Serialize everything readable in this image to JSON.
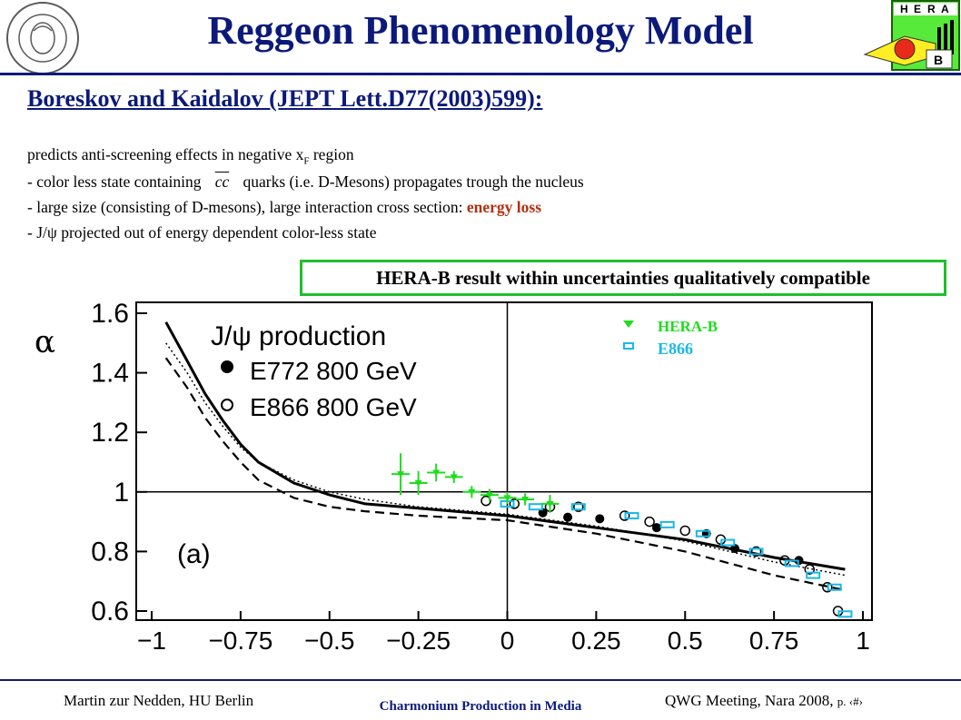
{
  "slide": {
    "title": "Reggeon Phenomenology Model",
    "subtitle": "Boreskov and Kaidalov (JEPT Lett.D77(2003)599):",
    "line1_prefix": "predicts anti-screening effects in negative x",
    "line1_sub": "F",
    "line1_suffix": " region",
    "line2_prefix": "- color less state containing",
    "line2_cc": "cc",
    "line2_suffix": "quarks (i.e. D-Mesons) propagates trough the nucleus",
    "line3_prefix": "- large size (consisting of D-mesons), large interaction cross section: ",
    "line3_highlight": "energy loss",
    "line4": "- J/ψ projected out of energy dependent color-less state",
    "callout": "HERA-B result within uncertainties qualitatively compatible"
  },
  "logos": {
    "university_seal_text": "HUMBOLDT-UNIVERSITÄT ZU BERLIN",
    "herab_letters": [
      "H",
      "E",
      "R",
      "A",
      "B"
    ]
  },
  "footer": {
    "left": "Martin zur Nedden, HU Berlin",
    "center": "Charmonium Production in Media",
    "right": "QWG Meeting, Nara 2008,",
    "page": "p. ‹#›"
  },
  "colors": {
    "title": "#0b1a7a",
    "highlight": "#b33010",
    "callout_border": "#1fbf2a",
    "herab_series": "#1fdc1f",
    "e866_overlay": "#19b8e8"
  },
  "chart_data": {
    "type": "scatter",
    "xlim": [
      -1,
      1
    ],
    "ylim": [
      0.55,
      1.62
    ],
    "xticks": [
      "−1",
      "−0.75",
      "−0.5",
      "−0.25",
      "0",
      "0.25",
      "0.5",
      "0.75",
      "1"
    ],
    "yticks": [
      "0.6",
      "0.8",
      "1",
      "1.2",
      "1.4",
      "1.6"
    ],
    "ylabel": "α",
    "panel_label": "(a)",
    "legend_title": "J/ψ production",
    "legend": [
      {
        "name": "E772  800 GeV",
        "marker": "filled-circle"
      },
      {
        "name": "E866  800 GeV",
        "marker": "open-circle"
      }
    ],
    "overlay_legend": [
      {
        "name": "HERA-B",
        "marker": "down-triangle",
        "color": "#1fdc1f"
      },
      {
        "name": "E866",
        "marker": "open-rect",
        "color": "#19b8e8"
      }
    ],
    "reference_line": {
      "y": 1,
      "x": 0
    },
    "curves": [
      {
        "style": "solid",
        "x": [
          -0.96,
          -0.9,
          -0.85,
          -0.8,
          -0.75,
          -0.7,
          -0.6,
          -0.5,
          -0.4,
          -0.25,
          0,
          0.25,
          0.5,
          0.75,
          0.95
        ],
        "y": [
          1.57,
          1.44,
          1.33,
          1.24,
          1.16,
          1.1,
          1.03,
          0.99,
          0.96,
          0.945,
          0.92,
          0.88,
          0.84,
          0.78,
          0.74
        ]
      },
      {
        "style": "dotted",
        "x": [
          -0.96,
          -0.9,
          -0.85,
          -0.8,
          -0.75,
          -0.7,
          -0.6,
          -0.5,
          -0.4,
          -0.25,
          0,
          0.25,
          0.5,
          0.75,
          0.95
        ],
        "y": [
          1.5,
          1.4,
          1.3,
          1.22,
          1.15,
          1.1,
          1.04,
          1.0,
          0.975,
          0.95,
          0.925,
          0.885,
          0.835,
          0.765,
          0.72
        ]
      },
      {
        "style": "dashed",
        "x": [
          -0.96,
          -0.9,
          -0.85,
          -0.8,
          -0.75,
          -0.7,
          -0.6,
          -0.5,
          -0.4,
          -0.25,
          0,
          0.25,
          0.5,
          0.75,
          0.95
        ],
        "y": [
          1.45,
          1.35,
          1.25,
          1.17,
          1.1,
          1.04,
          0.98,
          0.95,
          0.935,
          0.92,
          0.905,
          0.86,
          0.8,
          0.72,
          0.67
        ]
      }
    ],
    "e772": [
      {
        "x": 0.1,
        "y": 0.93
      },
      {
        "x": 0.17,
        "y": 0.915
      },
      {
        "x": 0.26,
        "y": 0.91
      },
      {
        "x": 0.42,
        "y": 0.88
      },
      {
        "x": 0.56,
        "y": 0.86
      },
      {
        "x": 0.64,
        "y": 0.81
      },
      {
        "x": 0.82,
        "y": 0.77
      }
    ],
    "e866_open": [
      {
        "x": -0.06,
        "y": 0.97
      },
      {
        "x": 0.02,
        "y": 0.96
      },
      {
        "x": 0.12,
        "y": 0.95
      },
      {
        "x": 0.2,
        "y": 0.95
      },
      {
        "x": 0.33,
        "y": 0.92
      },
      {
        "x": 0.4,
        "y": 0.9
      },
      {
        "x": 0.5,
        "y": 0.87
      },
      {
        "x": 0.6,
        "y": 0.84
      },
      {
        "x": 0.7,
        "y": 0.8
      },
      {
        "x": 0.78,
        "y": 0.77
      },
      {
        "x": 0.85,
        "y": 0.74
      },
      {
        "x": 0.9,
        "y": 0.68
      },
      {
        "x": 0.93,
        "y": 0.6
      }
    ],
    "herab": [
      {
        "x": -0.3,
        "y": 1.06,
        "err": 0.07
      },
      {
        "x": -0.25,
        "y": 1.03,
        "err": 0.04
      },
      {
        "x": -0.2,
        "y": 1.065,
        "err": 0.03
      },
      {
        "x": -0.15,
        "y": 1.05,
        "err": 0.02
      },
      {
        "x": -0.1,
        "y": 1.0,
        "err": 0.02
      },
      {
        "x": -0.05,
        "y": 0.99,
        "err": 0.02
      },
      {
        "x": 0.0,
        "y": 0.98,
        "err": 0.02
      },
      {
        "x": 0.05,
        "y": 0.975,
        "err": 0.02
      },
      {
        "x": 0.12,
        "y": 0.96,
        "err": 0.03
      }
    ],
    "e866_overlay": [
      {
        "x": 0.0,
        "y": 0.96
      },
      {
        "x": 0.08,
        "y": 0.95
      },
      {
        "x": 0.2,
        "y": 0.95
      },
      {
        "x": 0.35,
        "y": 0.92
      },
      {
        "x": 0.45,
        "y": 0.89
      },
      {
        "x": 0.55,
        "y": 0.86
      },
      {
        "x": 0.62,
        "y": 0.83
      },
      {
        "x": 0.7,
        "y": 0.8
      },
      {
        "x": 0.8,
        "y": 0.76
      },
      {
        "x": 0.86,
        "y": 0.72
      },
      {
        "x": 0.92,
        "y": 0.68
      },
      {
        "x": 0.95,
        "y": 0.59
      }
    ]
  }
}
